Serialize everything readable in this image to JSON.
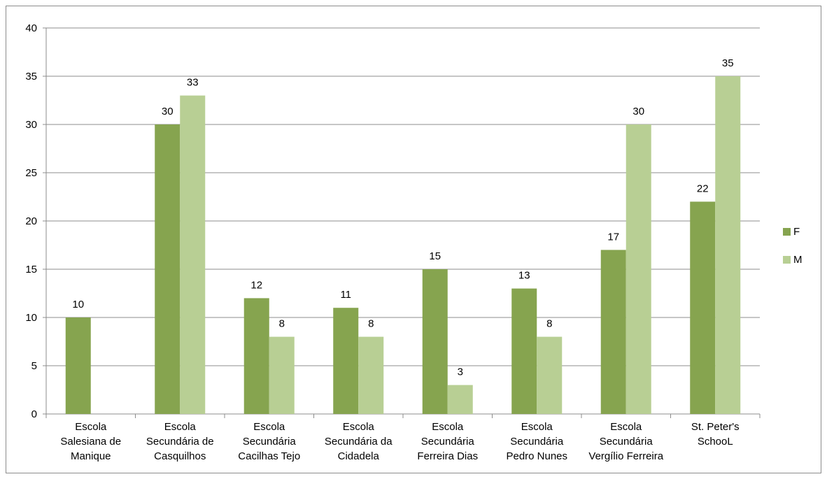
{
  "chart_data": {
    "type": "bar",
    "title": "",
    "xlabel": "",
    "ylabel": "",
    "ylim": [
      0,
      40
    ],
    "yticks": [
      0,
      5,
      10,
      15,
      20,
      25,
      30,
      35,
      40
    ],
    "grid": true,
    "legend_position": "right",
    "categories": [
      [
        "Escola",
        "Salesiana de",
        "Manique"
      ],
      [
        "Escola",
        "Secundária  de",
        "Casquilhos"
      ],
      [
        "Escola",
        "Secundária",
        "Cacilhas Tejo"
      ],
      [
        "Escola",
        "Secundária da",
        "Cidadela"
      ],
      [
        "Escola",
        "Secundária",
        "Ferreira Dias"
      ],
      [
        "Escola",
        "Secundária",
        "Pedro Nunes"
      ],
      [
        "Escola",
        "Secundária",
        "Vergílio Ferreira"
      ],
      [
        "St. Peter's",
        "SchooL"
      ]
    ],
    "series": [
      {
        "name": "F",
        "color": "#86a44f",
        "values": [
          10,
          30,
          12,
          11,
          15,
          13,
          17,
          22
        ]
      },
      {
        "name": "M",
        "color": "#b8cf94",
        "values": [
          null,
          33,
          8,
          8,
          3,
          8,
          30,
          35
        ]
      }
    ]
  }
}
